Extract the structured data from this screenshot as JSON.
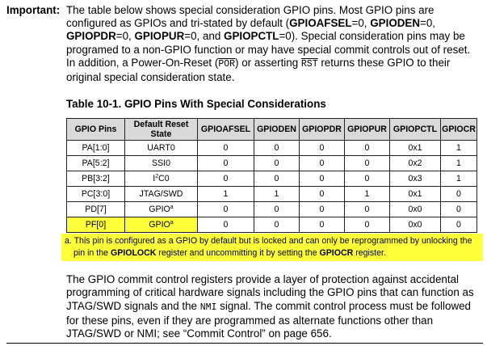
{
  "important": {
    "label": "Important:",
    "t1": "The table below shows special consideration GPIO pins. Most GPIO pins are configured as GPIOs and tri-stated by default (",
    "b1": "GPIOAFSEL",
    "t2": "=0, ",
    "b2": "GPIODEN",
    "t3": "=0, ",
    "b3": "GPIOPDR",
    "t4": "=0, ",
    "b4": "GPIOPUR",
    "t5": "=0, and ",
    "b5": "GPIOPCTL",
    "t6": "=0). Special consideration pins may be programed to a non-GPIO function or may have special commit controls out of reset. In addition, a Power-On-Reset (",
    "por": "POR",
    "t7": ") or asserting ",
    "rst": "RST",
    "t8": " returns these GPIO to their original special consideration state."
  },
  "table_title": "Table 10-1. GPIO Pins With Special Considerations",
  "table": {
    "headers": [
      "GPIO Pins",
      "Default Reset State",
      "GPIOAFSEL",
      "GPIODEN",
      "GPIOPDR",
      "GPIOPUR",
      "GPIOPCTL",
      "GPIOCR"
    ],
    "rows": [
      {
        "pin": "PA[1:0]",
        "state": "UART0",
        "state_sup": "",
        "afsel": "0",
        "den": "0",
        "pdr": "0",
        "pur": "0",
        "pctl": "0x1",
        "cr": "1"
      },
      {
        "pin": "PA[5:2]",
        "state": "SSI0",
        "state_sup": "",
        "afsel": "0",
        "den": "0",
        "pdr": "0",
        "pur": "0",
        "pctl": "0x2",
        "cr": "1"
      },
      {
        "pin": "PB[3:2]",
        "state_pre_sup": "2",
        "state_pre": "I",
        "state": "C0",
        "state_sup": "",
        "afsel": "0",
        "den": "0",
        "pdr": "0",
        "pur": "0",
        "pctl": "0x3",
        "cr": "1"
      },
      {
        "pin": "PC[3:0]",
        "state": "JTAG/SWD",
        "state_sup": "",
        "afsel": "1",
        "den": "1",
        "pdr": "0",
        "pur": "1",
        "pctl": "0x1",
        "cr": "0"
      },
      {
        "pin": "PD[7]",
        "state": "GPIO",
        "state_sup": "a",
        "afsel": "0",
        "den": "0",
        "pdr": "0",
        "pur": "0",
        "pctl": "0x0",
        "cr": "0"
      },
      {
        "pin": "PF[0]",
        "state": "GPIO",
        "state_sup": "a",
        "afsel": "0",
        "den": "0",
        "pdr": "0",
        "pur": "0",
        "pctl": "0x0",
        "cr": "0"
      }
    ]
  },
  "footnote": {
    "t1": "a. This pin is configured as a GPIO by default but is locked and can only be reprogrammed by unlocking the",
    "t2": "pin in the ",
    "b1": "GPIOLOCK",
    "t3": " register and uncommitting it by setting the ",
    "b2": "GPIOCR",
    "t4": " register."
  },
  "para2": {
    "t1": "The GPIO commit control registers provide a layer of protection against accidental programming of critical hardware signals including the GPIO pins that can function as JTAG/SWD signals and the ",
    "nmi": "NMI",
    "t2": " signal. The commit control process must be followed for these pins, even if they are programmed as alternate functions other than JTAG/SWD or NMI; see “Commit Control” on page 656."
  },
  "highlight_color": "#ffff3a"
}
